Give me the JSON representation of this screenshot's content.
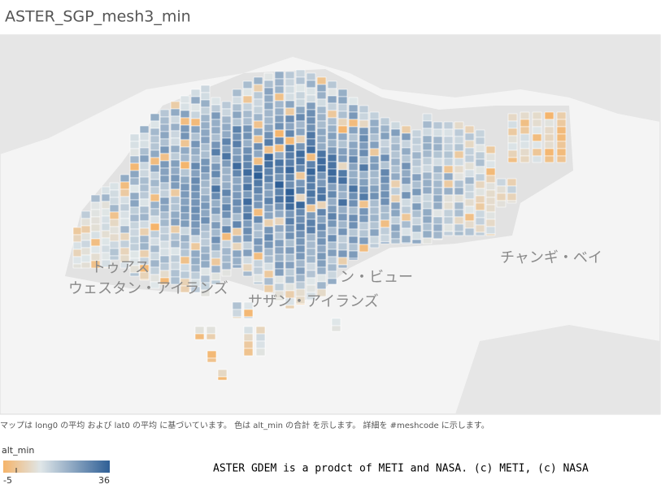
{
  "title": "ASTER_SGP_mesh3_min",
  "map_labels": [
    "トゥアス",
    "ウェスタン・アイランズ",
    "サザン・アイランズ",
    "ン・ビュー",
    "チャンギ・ベイ"
  ],
  "caption": "マップは long0 の平均 および lat0 の平均 に基づいています。 色は alt_min の合計 を示します。 詳細を #meshcode に示します。",
  "legend": {
    "title": "alt_min",
    "min": -5,
    "max": 36,
    "colors": [
      "#f5b46a",
      "#dfe6e8",
      "#2f5f96"
    ]
  },
  "credit": "ASTER GDEM is a prodct of METI and NASA. (c) METI, (c) NASA"
}
